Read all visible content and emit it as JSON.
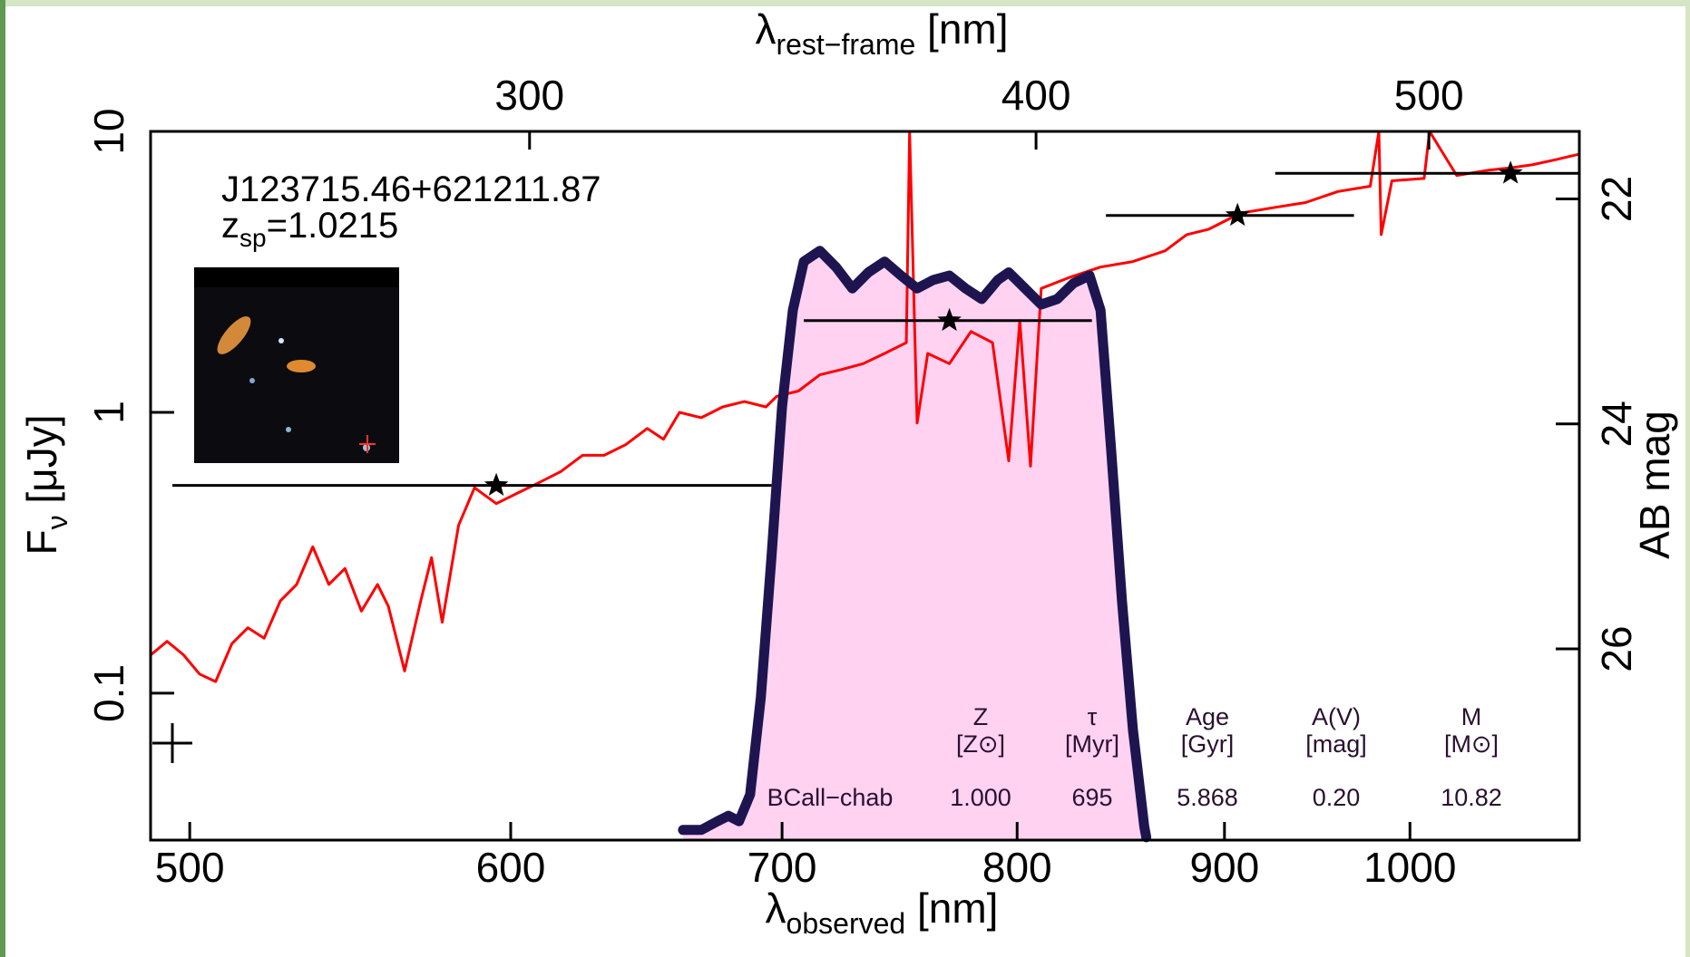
{
  "chart_data": {
    "type": "line",
    "title": "J123715.46+621211.87",
    "subtitle": {
      "main": "z",
      "sub": "sp",
      "rest": "=1.0215"
    },
    "x_label": {
      "main": "λ",
      "sub": "observed",
      "unit": " [nm]"
    },
    "x2_label": {
      "main": "λ",
      "sub": "rest−frame",
      "unit": " [nm]"
    },
    "y_label": {
      "main": "F",
      "sub": "ν",
      "unit": " [μJy]"
    },
    "y2_label": "AB mag",
    "xscale": "log",
    "yscale": "log",
    "xlim": [
      489,
      1101
    ],
    "xticks": [
      500,
      600,
      700,
      800,
      900,
      1000
    ],
    "x2lim": [
      241.9,
      544.6
    ],
    "x2ticks": [
      300,
      400,
      500
    ],
    "ylim": [
      0.03,
      10
    ],
    "yticks": [
      0.1,
      1,
      10
    ],
    "y2lim": [
      27.7,
      21.4
    ],
    "y2ticks": [
      22,
      24,
      26
    ],
    "series": [
      {
        "color": "#ff0000",
        "x": [
          489.1,
          493.6,
          498.2,
          502.8,
          507.4,
          512.1,
          516.8,
          521.6,
          526.4,
          531.3,
          536.2,
          541.1,
          546.1,
          551.2,
          556.3,
          559.7,
          564.9,
          570.1,
          573.6,
          577.1,
          582.5,
          587.8,
          595.1,
          602.4,
          609.9,
          617.4,
          625.0,
          632.7,
          640.5,
          648.4,
          654.4,
          660.4,
          668.6,
          676.8,
          685.2,
          693.6,
          697.9,
          706.5,
          715.2,
          724.0,
          733.0,
          742.0,
          751.2,
          752.6,
          755.8,
          760.4,
          769.8,
          779.3,
          788.9,
          796.2,
          801.2,
          806.1,
          811.0,
          823.6,
          838.8,
          854.4,
          870.2,
          880.9,
          891.8,
          908.3,
          925.2,
          942.4,
          959.9,
          977.7,
          982.5,
          983.8,
          989.8,
          1008.1,
          1011.2,
          1026.9,
          1045.9,
          1058.8,
          1071.8,
          1085.1,
          1101
        ],
        "values": [
          0.137,
          0.153,
          0.137,
          0.117,
          0.11,
          0.15,
          0.171,
          0.157,
          0.213,
          0.244,
          0.332,
          0.244,
          0.278,
          0.196,
          0.244,
          0.204,
          0.12,
          0.213,
          0.304,
          0.179,
          0.396,
          0.539,
          0.473,
          0.516,
          0.563,
          0.616,
          0.703,
          0.703,
          0.767,
          0.876,
          0.802,
          1.0,
          0.957,
          1.045,
          1.092,
          1.045,
          1.14,
          1.19,
          1.36,
          1.42,
          1.49,
          1.62,
          1.77,
          10,
          0.916,
          1.62,
          1.49,
          1.94,
          1.77,
          0.672,
          2.12,
          0.643,
          2.76,
          3.01,
          3.29,
          3.44,
          3.76,
          4.29,
          4.48,
          5.12,
          5.35,
          5.58,
          6.11,
          6.38,
          10,
          4.29,
          6.67,
          6.8,
          10,
          6.97,
          7.28,
          7.42,
          7.6,
          7.9,
          8.3
        ]
      },
      {
        "color": "#1e1550",
        "fill": "#ffd2f2",
        "x": [
          661.7,
          668.6,
          674.8,
          679.0,
          683.1,
          687.4,
          691.6,
          695.8,
          700.0,
          704.3,
          708.7,
          715.2,
          721.8,
          728.5,
          735.2,
          742.0,
          748.9,
          755.8,
          762.8,
          769.8,
          776.9,
          784.1,
          791.3,
          796.2,
          803.6,
          811.0,
          818.4,
          826.0,
          833.6,
          838.8,
          843.9,
          849.1,
          854.4,
          859.9,
          860.9
        ],
        "values": [
          0.0326,
          0.0326,
          0.035,
          0.0366,
          0.035,
          0.0436,
          0.0965,
          0.304,
          1.045,
          2.31,
          3.44,
          3.76,
          3.29,
          2.76,
          3.15,
          3.44,
          3.07,
          2.76,
          2.96,
          3.07,
          2.76,
          2.53,
          2.96,
          3.15,
          2.76,
          2.42,
          2.53,
          2.88,
          3.07,
          2.31,
          0.734,
          0.2136,
          0.0741,
          0.0335,
          0.0307
        ]
      }
    ],
    "photometry": {
      "color": "#000000",
      "x": [
        595.1,
        769.8,
        906.7,
        1058.8
      ],
      "values": [
        0.549,
        2.12,
        5.02,
        7.09
      ],
      "x_low": [
        495.1,
        708.7,
        841.4,
        926.3
      ],
      "x_high": [
        695.8,
        834.7,
        968.7,
        1101
      ]
    },
    "table": {
      "headers": [
        {
          "top": "Z",
          "bottom": "[Z⊙]"
        },
        {
          "top": "τ",
          "bottom": "[Myr]"
        },
        {
          "top": "Age",
          "bottom": "[Gyr]"
        },
        {
          "top": "A(V)",
          "bottom": "[mag]"
        },
        {
          "top": "M",
          "bottom": "[M⊙]"
        }
      ],
      "row": [
        "BCall−chab",
        "1.000",
        "695",
        "5.868",
        "0.20",
        "10.82"
      ]
    }
  }
}
